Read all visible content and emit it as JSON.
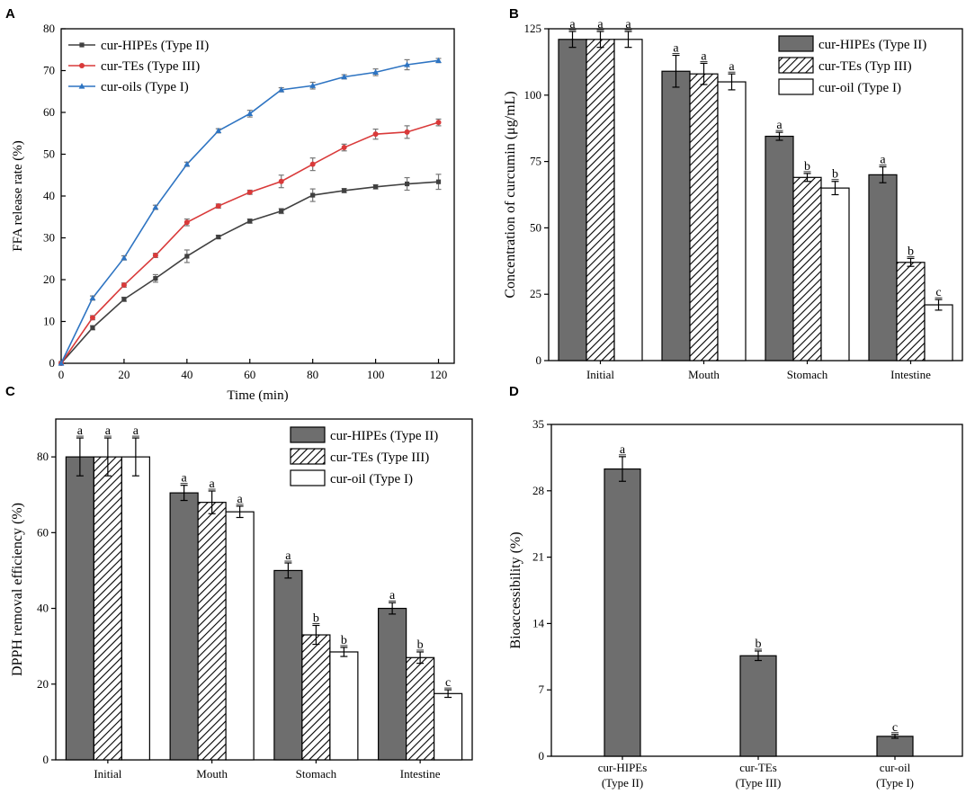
{
  "chart_data": [
    {
      "panel": "A",
      "type": "line",
      "title": "",
      "xlabel": "Time (min)",
      "ylabel": "FFA release rate (%)",
      "xlim": [
        0,
        125
      ],
      "ylim": [
        0,
        80
      ],
      "x_ticks": [
        0,
        20,
        40,
        60,
        80,
        100,
        120
      ],
      "y_ticks": [
        0,
        10,
        20,
        30,
        40,
        50,
        60,
        70,
        80
      ],
      "legend_position": "top-left",
      "x": [
        0,
        10,
        20,
        30,
        40,
        50,
        60,
        70,
        80,
        90,
        100,
        110,
        120
      ],
      "series": [
        {
          "name": "cur-HIPEs (Type II)",
          "color": "#404040",
          "marker": "square",
          "values": [
            0,
            8.5,
            15.3,
            20.3,
            25.6,
            30.2,
            34.0,
            36.4,
            40.2,
            41.3,
            42.2,
            42.9,
            43.4
          ],
          "errors": [
            0,
            0.5,
            0.5,
            0.9,
            1.5,
            0.4,
            0.5,
            0.6,
            1.5,
            0.5,
            0.5,
            1.5,
            1.8
          ]
        },
        {
          "name": "cur-TEs (Type III)",
          "color": "#d93a3a",
          "marker": "circle",
          "values": [
            0,
            10.9,
            18.7,
            25.8,
            33.7,
            37.6,
            40.9,
            43.5,
            47.6,
            51.6,
            54.8,
            55.3,
            57.6
          ],
          "errors": [
            0,
            0.5,
            0.5,
            0.5,
            0.8,
            0.5,
            0.5,
            1.5,
            1.5,
            0.8,
            1.2,
            1.5,
            0.8
          ]
        },
        {
          "name": "cur-oils (Type I)",
          "color": "#2e74c2",
          "marker": "triangle",
          "values": [
            0,
            15.6,
            25.2,
            37.3,
            47.6,
            55.6,
            59.7,
            65.4,
            66.4,
            68.5,
            69.6,
            71.4,
            72.4
          ],
          "errors": [
            0,
            0.5,
            0.5,
            0.5,
            0.5,
            0.5,
            0.8,
            0.5,
            0.8,
            0.5,
            0.8,
            1.2,
            0.5
          ]
        }
      ]
    },
    {
      "panel": "B",
      "type": "bar",
      "title": "",
      "xlabel": "",
      "ylabel": "Concentration of curcumin (μg/mL)",
      "ylim": [
        0,
        125
      ],
      "y_ticks": [
        0,
        25,
        50,
        75,
        100,
        125
      ],
      "legend_position": "top-right",
      "categories": [
        "Initial",
        "Mouth",
        "Stomach",
        "Intestine"
      ],
      "series": [
        {
          "name": "cur-HIPEs (Type II)",
          "style": "solid-gray",
          "values": [
            121,
            109,
            84.5,
            70
          ],
          "errors": [
            3,
            6,
            1.5,
            3
          ],
          "labels": [
            "a",
            "a",
            "a",
            "a"
          ]
        },
        {
          "name": "cur-TEs (Typ III)",
          "style": "hatched",
          "values": [
            121,
            108,
            69,
            37
          ],
          "errors": [
            3,
            4,
            1.5,
            1.5
          ],
          "labels": [
            "a",
            "a",
            "b",
            "b"
          ]
        },
        {
          "name": "cur-oil (Type I)",
          "style": "white",
          "values": [
            121,
            105,
            65,
            21
          ],
          "errors": [
            3,
            3,
            2.5,
            2
          ],
          "labels": [
            "a",
            "a",
            "b",
            "c"
          ]
        }
      ]
    },
    {
      "panel": "C",
      "type": "bar",
      "title": "",
      "xlabel": "",
      "ylabel": "DPPH removal efficiency (%)",
      "ylim": [
        0,
        90
      ],
      "y_ticks": [
        0,
        20,
        40,
        60,
        80
      ],
      "legend_position": "top-right",
      "categories": [
        "Initial",
        "Mouth",
        "Stomach",
        "Intestine"
      ],
      "series": [
        {
          "name": "cur-HIPEs (Type II)",
          "style": "solid-gray",
          "values": [
            80,
            70.5,
            50,
            40
          ],
          "errors": [
            5,
            2,
            2,
            1.5
          ],
          "labels": [
            "a",
            "a",
            "a",
            "a"
          ]
        },
        {
          "name": "cur-TEs (Type III)",
          "style": "hatched",
          "values": [
            80,
            68,
            33,
            27
          ],
          "errors": [
            5,
            3,
            2.5,
            1.5
          ],
          "labels": [
            "a",
            "a",
            "b",
            "b"
          ]
        },
        {
          "name": "cur-oil (Type  I)",
          "style": "white",
          "values": [
            80,
            65.5,
            28.5,
            17.5
          ],
          "errors": [
            5,
            1.5,
            1.2,
            1
          ],
          "labels": [
            "a",
            "a",
            "b",
            "c"
          ]
        }
      ]
    },
    {
      "panel": "D",
      "type": "bar",
      "title": "",
      "xlabel": "",
      "ylabel": "Bioaccessibility (%)",
      "ylim": [
        0,
        35
      ],
      "y_ticks": [
        0,
        7,
        14,
        21,
        28,
        35
      ],
      "categories": [
        [
          "cur-HIPEs",
          "(Type II)"
        ],
        [
          "cur-TEs",
          "(Type III)"
        ],
        [
          "cur-oil",
          "(Type I)"
        ]
      ],
      "series": [
        {
          "name": "Bioaccessibility",
          "style": "solid-gray",
          "values": [
            30.3,
            10.6,
            2.1
          ],
          "errors": [
            1.3,
            0.5,
            0.2
          ],
          "labels": [
            "a",
            "b",
            "c"
          ]
        }
      ]
    }
  ],
  "colors": {
    "bar_fill": "#6e6e6e",
    "axis": "#000000",
    "hatch": "#000000"
  }
}
